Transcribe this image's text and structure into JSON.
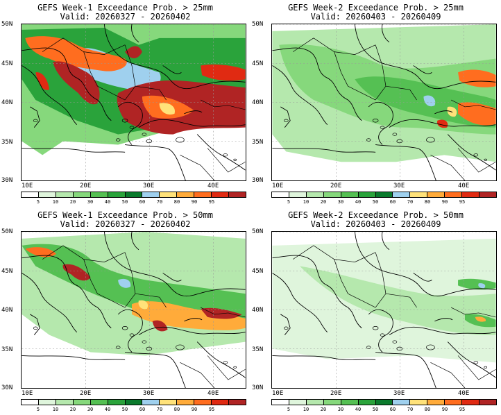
{
  "panels": [
    {
      "title": "GEFS Week-1 Exceedance Prob. > 25mm",
      "valid": "Valid: 20260327 - 20260402",
      "week": 1,
      "threshold_mm": 25
    },
    {
      "title": "GEFS Week-2 Exceedance Prob. > 25mm",
      "valid": "Valid: 20260403 - 20260409",
      "week": 2,
      "threshold_mm": 25
    },
    {
      "title": "GEFS Week-1 Exceedance Prob. > 50mm",
      "valid": "Valid: 20260327 - 20260402",
      "week": 1,
      "threshold_mm": 50
    },
    {
      "title": "GEFS Week-2 Exceedance Prob. > 50mm",
      "valid": "Valid: 20260403 - 20260409",
      "week": 2,
      "threshold_mm": 50
    }
  ],
  "axes": {
    "lat_labels": [
      "50N",
      "45N",
      "40N",
      "35N",
      "30N"
    ],
    "lon_labels": [
      "10E",
      "20E",
      "30E",
      "40E"
    ]
  },
  "colorbar": {
    "labels": [
      "5",
      "10",
      "20",
      "30",
      "40",
      "50",
      "60",
      "70",
      "80",
      "90",
      "95"
    ],
    "colors": [
      "#ffffff",
      "#dff5dc",
      "#b5e8ad",
      "#86d87c",
      "#55c053",
      "#2aa33b",
      "#0a7a2c",
      "#9fd0ee",
      "#ffe27a",
      "#ffab3a",
      "#ff6d1f",
      "#e02a12",
      "#b02424"
    ]
  }
}
